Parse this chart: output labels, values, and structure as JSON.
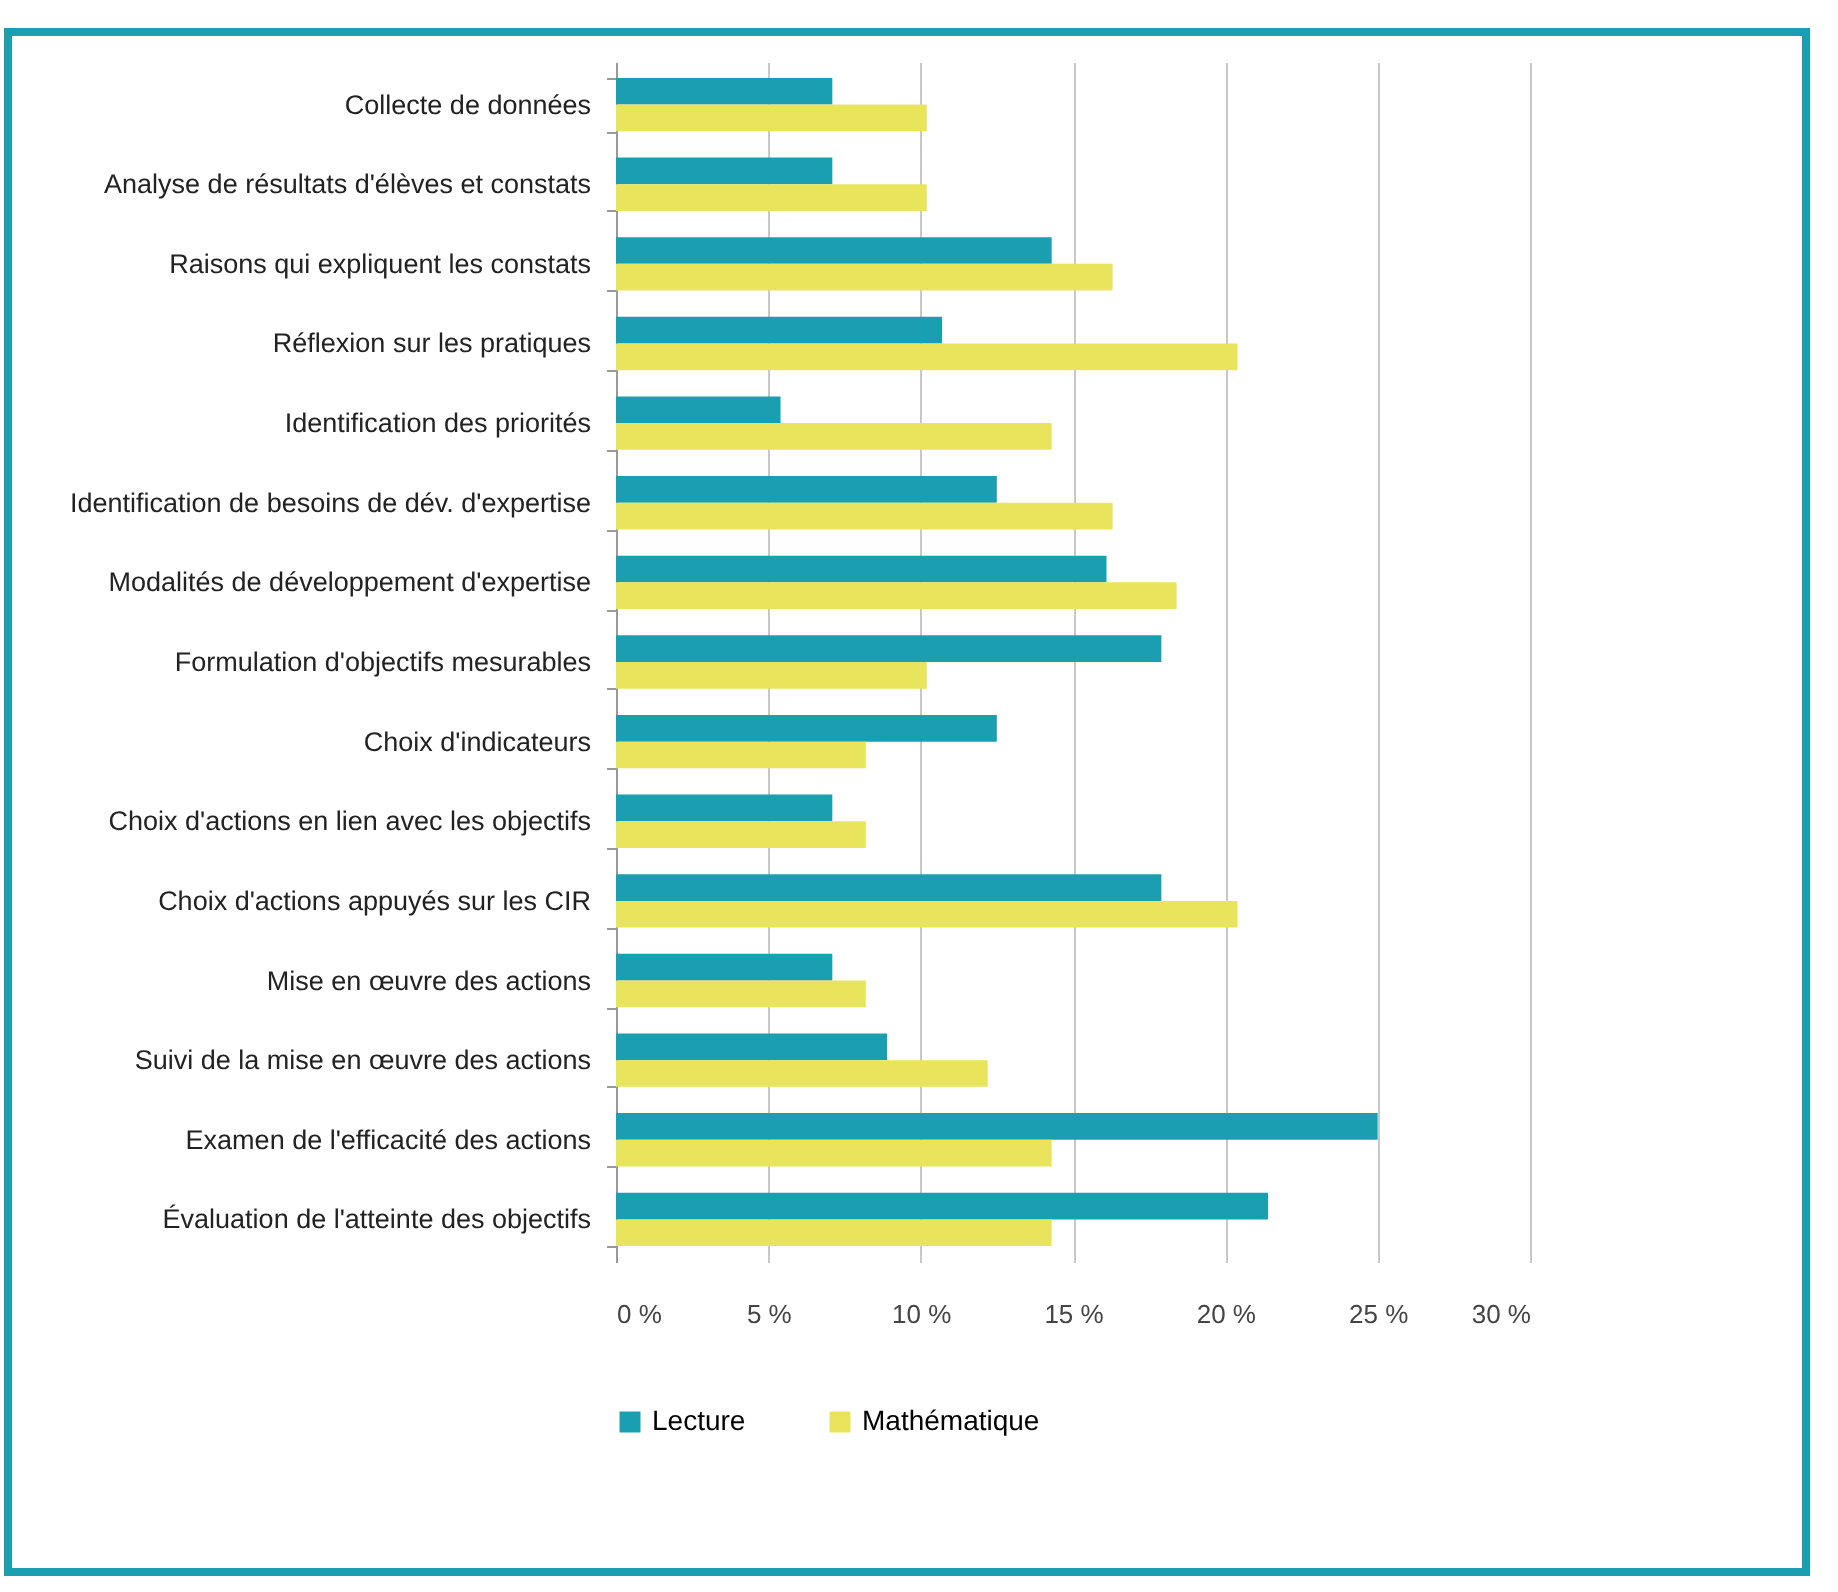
{
  "chart_data": {
    "type": "bar",
    "orientation": "horizontal",
    "categories": [
      "Collecte de données",
      "Analyse de résultats d'élèves et constats",
      "Raisons qui expliquent les constats",
      "Réflexion sur les pratiques",
      "Identification des priorités",
      "Identification de besoins de dév. d'expertise",
      "Modalités de développement d'expertise",
      "Formulation d'objectifs mesurables",
      "Choix d'indicateurs",
      "Choix d'actions en lien avec les objectifs",
      "Choix d'actions appuyés sur les CIR",
      "Mise en œuvre des actions",
      "Suivi de la mise en œuvre des actions",
      "Examen de l'efficacité des actions",
      "Évaluation de l'atteinte des objectifs"
    ],
    "series": [
      {
        "name": "Lecture",
        "color": "#1a9fb0",
        "values": [
          7.1,
          7.1,
          14.3,
          10.7,
          5.4,
          12.5,
          16.1,
          17.9,
          12.5,
          7.1,
          17.9,
          7.1,
          8.9,
          25,
          21.4
        ]
      },
      {
        "name": "Mathématique",
        "color": "#e8e45c",
        "values": [
          10.2,
          10.2,
          16.3,
          20.4,
          14.3,
          16.3,
          18.4,
          10.2,
          8.2,
          8.2,
          20.4,
          8.2,
          12.2,
          14.3,
          14.3
        ]
      }
    ],
    "xlim": [
      0,
      30
    ],
    "xticks": [
      {
        "value": 0,
        "label": "0 %"
      },
      {
        "value": 5,
        "label": "5 %"
      },
      {
        "value": 10,
        "label": "10 %"
      },
      {
        "value": 15,
        "label": "15 %"
      },
      {
        "value": 20,
        "label": "20 %"
      },
      {
        "value": 25,
        "label": "25 %"
      },
      {
        "value": 30,
        "label": "30 %"
      }
    ],
    "grid": "x",
    "legend": "bottom"
  }
}
